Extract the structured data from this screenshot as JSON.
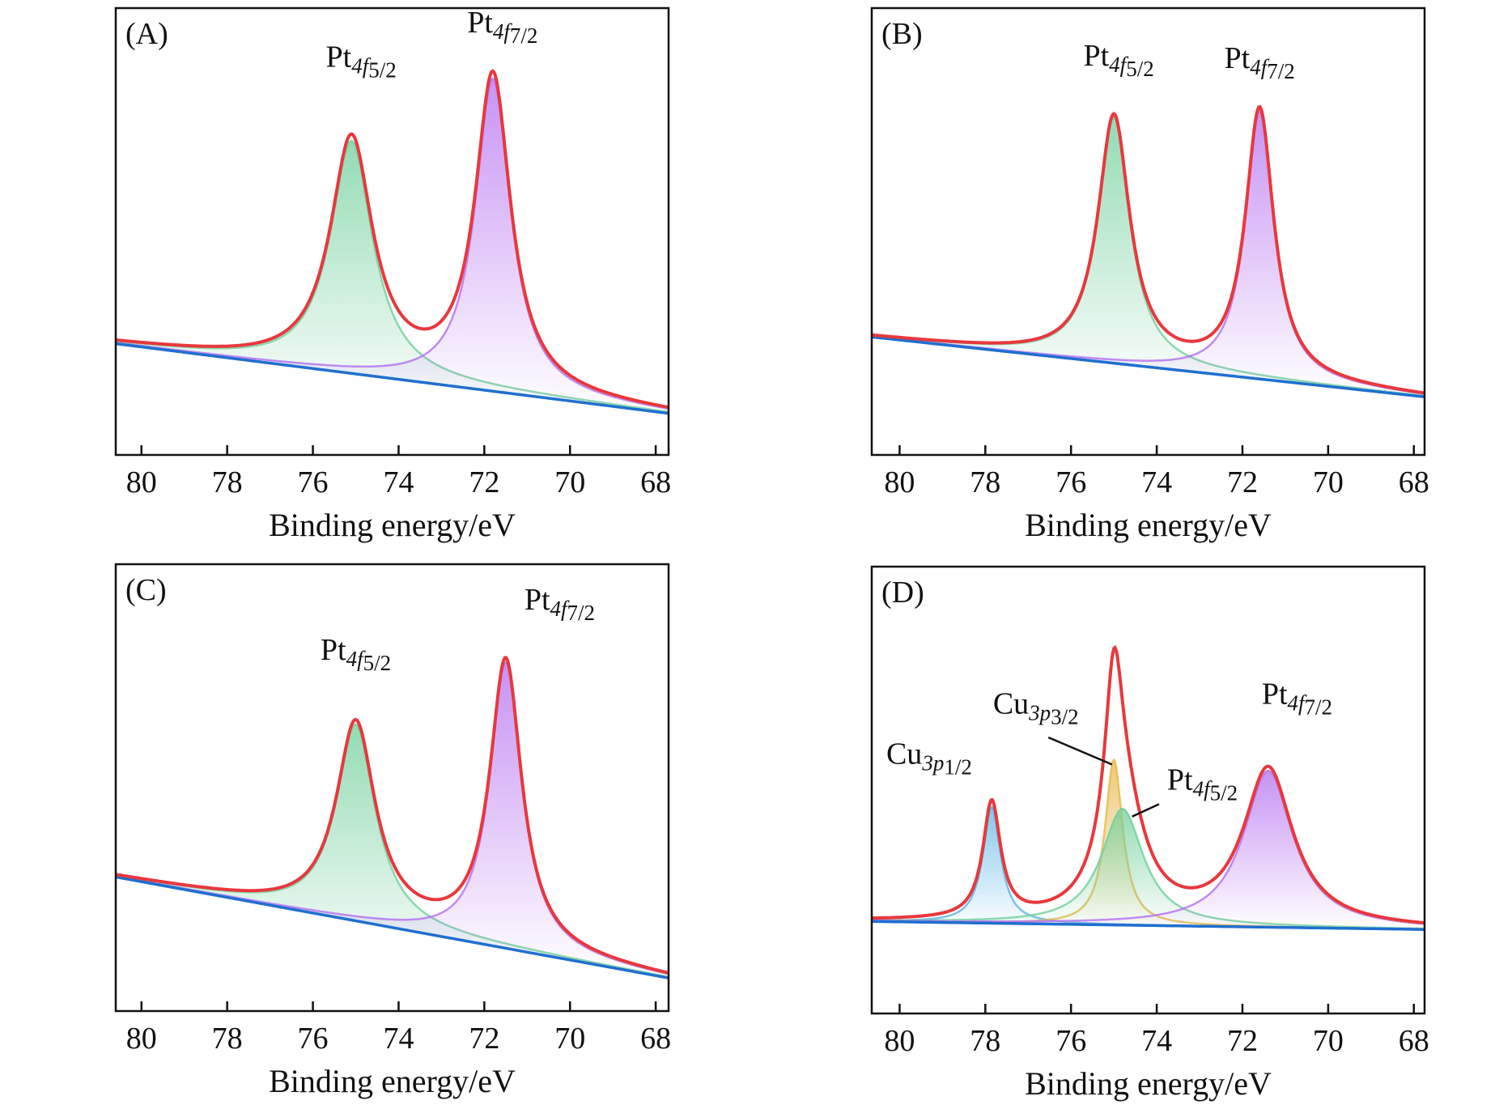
{
  "chart_data": [
    {
      "type": "peak-fit",
      "title": "(A)",
      "x_label": "Binding energy/eV",
      "xlim": [
        80.6,
        67.7
      ],
      "xticks": [
        80,
        78,
        76,
        74,
        72,
        70,
        68
      ],
      "ylim": [
        0,
        100
      ],
      "baseline": [
        24.9,
        9.3
      ],
      "baseline_color": "#1f6fd0",
      "envelope_color": "#e8383d",
      "peaks": [
        {
          "label": [
            "Pt",
            "4f",
            "5/2"
          ],
          "center": 75.1,
          "height": 52,
          "width": 0.6,
          "color": "#6fcf9a"
        },
        {
          "label": [
            "Pt",
            "4f",
            "7/2"
          ],
          "center": 71.8,
          "height": 70,
          "width": 0.5,
          "color": "#b46ef0"
        }
      ]
    },
    {
      "type": "peak-fit",
      "title": "(B)",
      "x_label": "Binding energy/eV",
      "xlim": [
        80.65,
        67.75
      ],
      "xticks": [
        80,
        78,
        76,
        74,
        72,
        70,
        68
      ],
      "ylim": [
        0,
        100
      ],
      "baseline": [
        26.4,
        13
      ],
      "baseline_color": "#1f6fd0",
      "envelope_color": "#e8383d",
      "peaks": [
        {
          "label": [
            "Pt",
            "4f",
            "5/2"
          ],
          "center": 75.0,
          "height": 55,
          "width": 0.45,
          "color": "#6fcf9a"
        },
        {
          "label": [
            "Pt",
            "4f",
            "7/2"
          ],
          "center": 71.6,
          "height": 60,
          "width": 0.4,
          "color": "#b46ef0"
        }
      ]
    },
    {
      "type": "peak-fit",
      "title": "(C)",
      "x_label": "Binding energy/eV",
      "xlim": [
        80.6,
        67.7
      ],
      "xticks": [
        80,
        78,
        76,
        74,
        72,
        70,
        68
      ],
      "ylim": [
        0,
        100
      ],
      "baseline": [
        30,
        7.4
      ],
      "baseline_color": "#1f6fd0",
      "envelope_color": "#e8383d",
      "peaks": [
        {
          "label": [
            "Pt",
            "4f",
            "5/2"
          ],
          "center": 75.0,
          "height": 44,
          "width": 0.55,
          "color": "#6fcf9a"
        },
        {
          "label": [
            "Pt",
            "4f",
            "7/2"
          ],
          "center": 71.5,
          "height": 64,
          "width": 0.45,
          "color": "#b46ef0"
        }
      ]
    },
    {
      "type": "peak-fit",
      "title": "(D)",
      "x_label": "Binding energy/eV",
      "xlim": [
        80.65,
        67.75
      ],
      "xticks": [
        80,
        78,
        76,
        74,
        72,
        70,
        68
      ],
      "ylim": [
        0,
        100
      ],
      "baseline": [
        20.6,
        18.8
      ],
      "baseline_color": "#1f6fd0",
      "envelope_color": "#e8383d",
      "peaks": [
        {
          "label": [
            "Cu",
            "3p",
            "1/2"
          ],
          "center": 77.85,
          "height": 26,
          "width": 0.25,
          "color": "#5ab4e6"
        },
        {
          "label": [
            "Cu",
            "3p",
            "3/2"
          ],
          "center": 75.0,
          "height": 37,
          "width": 0.25,
          "color": "#e8b84a"
        },
        {
          "label": [
            "Pt",
            "4f",
            "5/2"
          ],
          "center": 74.8,
          "height": 26,
          "width": 0.6,
          "color": "#6fcf9a"
        },
        {
          "label": [
            "Pt",
            "4f",
            "7/2"
          ],
          "center": 71.4,
          "height": 35,
          "width": 0.7,
          "color": "#b46ef0"
        }
      ]
    }
  ]
}
